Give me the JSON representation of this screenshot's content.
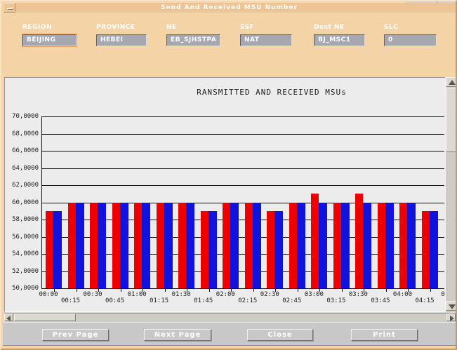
{
  "window": {
    "title": "Send And Received MSU Number"
  },
  "form": {
    "fields": [
      {
        "label": "REGION",
        "value": "BEIJING"
      },
      {
        "label": "PROVINCE",
        "value": "HEBEI"
      },
      {
        "label": "NE",
        "value": "EB_SJHSTPA"
      },
      {
        "label": "SSF",
        "value": "NAT"
      },
      {
        "label": "Dest NE",
        "value": "BJ_MSC1"
      },
      {
        "label": "SLC",
        "value": "0"
      }
    ]
  },
  "chart_data": {
    "type": "bar",
    "title": "RANSMITTED AND RECEIVED MSUs",
    "categories": [
      "00:00",
      "00:15",
      "00:30",
      "00:45",
      "01:00",
      "01:15",
      "01:30",
      "01:45",
      "02:00",
      "02:15",
      "02:30",
      "02:45",
      "03:00",
      "03:15",
      "03:30",
      "03:45",
      "04:00",
      "04:15"
    ],
    "clipped_next_x_label": "0",
    "series": [
      {
        "name": "transmitted",
        "color": "#ee0000",
        "values": [
          590000,
          600000,
          600000,
          600000,
          600000,
          600000,
          600000,
          590000,
          600000,
          600000,
          590000,
          600000,
          610000,
          600000,
          610000,
          600000,
          600000,
          590000
        ]
      },
      {
        "name": "received",
        "color": "#1212dd",
        "values": [
          590000,
          600000,
          600000,
          600000,
          600000,
          600000,
          600000,
          590000,
          600000,
          600000,
          590000,
          600000,
          600000,
          600000,
          600000,
          600000,
          600000,
          590000
        ]
      }
    ],
    "xlabel": "",
    "ylabel": "",
    "ylim": [
      500000,
      700000
    ],
    "y_tick_step": 20000,
    "y_tick_labels": [
      "50,0000",
      "52,0000",
      "54,0000",
      "56,0000",
      "58,0000",
      "60,0000",
      "62,0000",
      "64,0000",
      "66,0000",
      "68,0000",
      "70,0000"
    ],
    "grid": "horizontal",
    "legend": "none"
  },
  "buttons": [
    {
      "label": "Prev Page"
    },
    {
      "label": "Next Page"
    },
    {
      "label": "Close"
    },
    {
      "label": "Print"
    }
  ],
  "colors": {
    "window_bg": "#f4d3a7",
    "titlebar_bg": "#efc494",
    "field_bg": "#a7a7b0",
    "chart_bg": "#ececec",
    "panel_bg": "#c8c8c8"
  }
}
